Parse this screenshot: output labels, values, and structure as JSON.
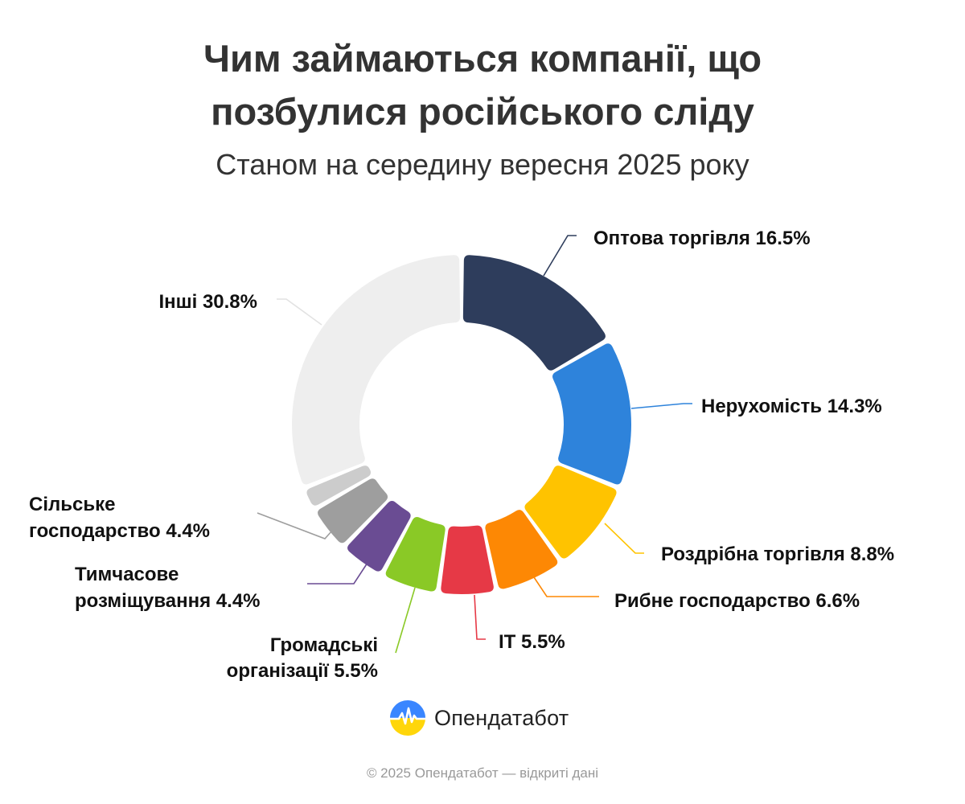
{
  "title": {
    "line1": "Чим займаються компанії, що",
    "line2": "позбулися російського сліду"
  },
  "subtitle": "Станом на середину вересня 2025 року",
  "chart_data": {
    "type": "pie",
    "donut": true,
    "title": "Чим займаються компанії, що позбулися російського сліду",
    "subtitle": "Станом на середину вересня 2025 року",
    "unit": "%",
    "slices": [
      {
        "label": "Оптова торгівля 16.5%",
        "value": 16.5,
        "color": "#2e3d5c"
      },
      {
        "label": "Нерухомість 14.3%",
        "value": 14.3,
        "color": "#2e83db"
      },
      {
        "label": "Роздрібна торгівля 8.8%",
        "value": 8.8,
        "color": "#ffc300"
      },
      {
        "label": "Рибне господарство 6.6%",
        "value": 6.6,
        "color": "#fd8804"
      },
      {
        "label": "IT 5.5%",
        "value": 5.5,
        "color": "#e63946"
      },
      {
        "label": "Громадські організації 5.5%",
        "value": 5.5,
        "color": "#8ac926"
      },
      {
        "label": "Тимчасове розміщування 4.4%",
        "value": 4.4,
        "color": "#6a4c93"
      },
      {
        "label": "Сільське господарство 4.4%",
        "value": 4.4,
        "color": "#9e9e9e"
      },
      {
        "label": "",
        "value": 2.2,
        "color": "#cccccc"
      },
      {
        "label": "Інші 30.8%",
        "value": 30.8,
        "color": "#eeeeee"
      }
    ]
  },
  "brand": {
    "name": "Опендатабот",
    "logo_icon": "opendatabot-logo-icon",
    "logo_colors": {
      "top": "#3a86ff",
      "bottom": "#ffd60a",
      "pulse": "#ffffff"
    }
  },
  "footer": "© 2025 Опендатабот — відкриті дані"
}
